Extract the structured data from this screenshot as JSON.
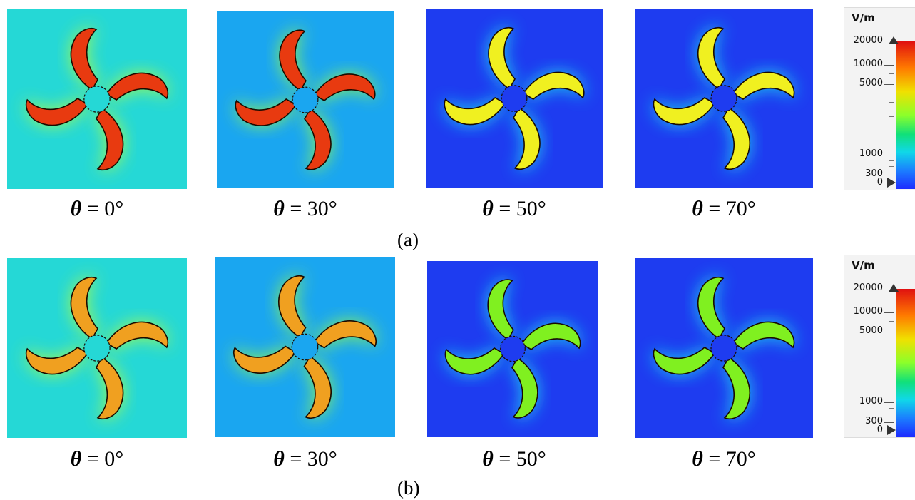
{
  "panels": {
    "top": [
      {
        "caption_theta": "θ",
        "caption_eq": " = 0°",
        "background": "#25d8d6",
        "glow": "#b6ff3a",
        "blade_fill": "#e83a10"
      },
      {
        "caption_theta": "θ",
        "caption_eq": " = 30°",
        "background": "#1aa6f0",
        "glow": "#9cff40",
        "blade_fill": "#e83a10"
      },
      {
        "caption_theta": "θ",
        "caption_eq": " = 50°",
        "background": "#1e3cf0",
        "glow": "#1fe2f0",
        "blade_fill": "#f0f020"
      },
      {
        "caption_theta": "θ",
        "caption_eq": " = 70°",
        "background": "#1e3cf0",
        "glow": "#1fe2f0",
        "blade_fill": "#f0f020"
      }
    ],
    "bottom": [
      {
        "caption_theta": "θ",
        "caption_eq": " = 0°",
        "background": "#25d8d6",
        "glow": "#b6ff3a",
        "blade_fill": "#f0a020"
      },
      {
        "caption_theta": "θ",
        "caption_eq": " = 30°",
        "background": "#1aa6f0",
        "glow": "#9cff40",
        "blade_fill": "#f0a020"
      },
      {
        "caption_theta": "θ",
        "caption_eq": " = 50°",
        "background": "#1e3cf0",
        "glow": "#1fe2f0",
        "blade_fill": "#80f020"
      },
      {
        "caption_theta": "θ",
        "caption_eq": " = 70°",
        "background": "#1e3cf0",
        "glow": "#1fe2f0",
        "blade_fill": "#80f020"
      }
    ]
  },
  "row_labels": {
    "top": "(a)",
    "bottom": "(b)"
  },
  "legend": {
    "unit": "V/m",
    "ticks": [
      "20000",
      "10000",
      "5000",
      "1000",
      "300",
      "0"
    ]
  },
  "colors": {
    "accent_red": "#e01010",
    "blade_edge": "#1a0a00"
  }
}
